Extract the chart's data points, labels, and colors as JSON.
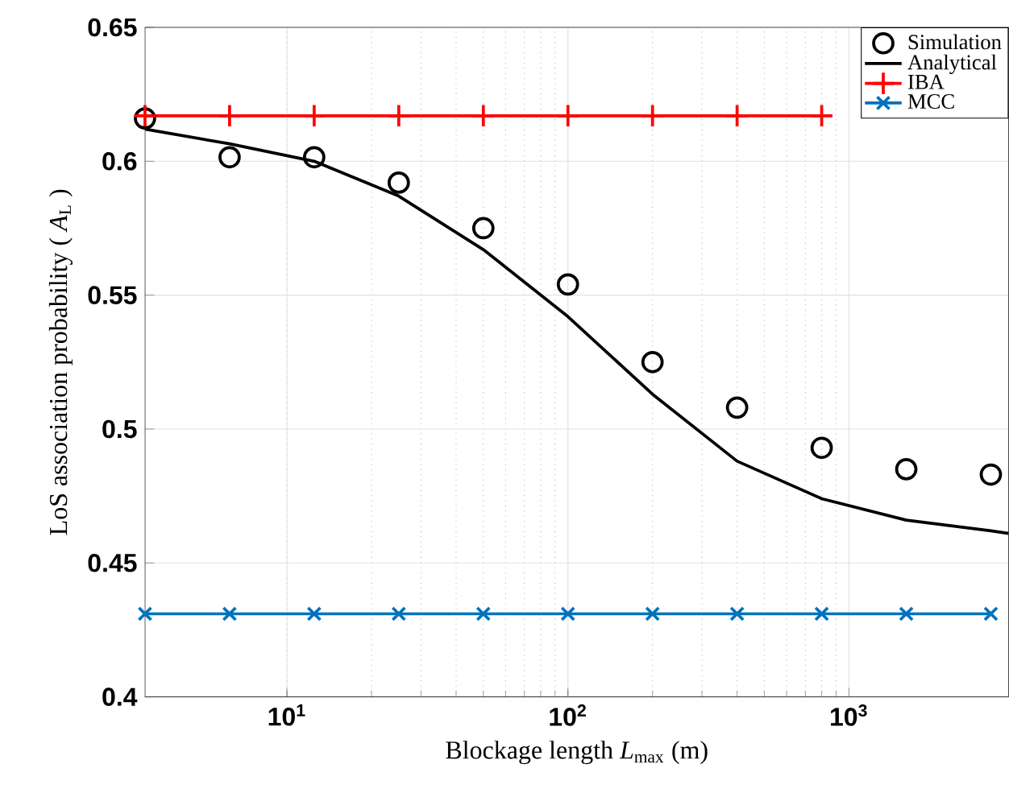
{
  "chart_data": {
    "type": "line",
    "xlabel": "Blockage length *L*$_{max}$ (m)",
    "ylabel": "LoS association probability ( *A*$_{L}$ )",
    "log": "x",
    "xlim": [
      3.125,
      3700
    ],
    "ylim": [
      0.4,
      0.65
    ],
    "xticks": [
      {
        "value": 10,
        "label": "10$^{1}$"
      },
      {
        "value": 100,
        "label": "10$^{2}$"
      },
      {
        "value": 1000,
        "label": "10$^{3}$"
      }
    ],
    "yticks": [
      0.4,
      0.45,
      0.5,
      0.55,
      0.6,
      0.65
    ],
    "grid": true,
    "legend": "top right",
    "line_style": "solid",
    "series": [
      {
        "name": "Simulation",
        "type": "scatter",
        "marker": "circle",
        "color": "#000000",
        "x": [
          3.125,
          6.25,
          12.5,
          25,
          50,
          100,
          200,
          400,
          800,
          1600,
          3200
        ],
        "values": [
          0.616,
          0.6015,
          0.6015,
          0.592,
          0.575,
          0.554,
          0.525,
          0.508,
          0.493,
          0.485,
          0.483
        ]
      },
      {
        "name": "Analytical",
        "marker": "none",
        "color": "#000000",
        "x": [
          3.125,
          6.25,
          12.5,
          25,
          50,
          100,
          200,
          400,
          800,
          1600,
          3200,
          3700
        ],
        "values": [
          0.612,
          0.6065,
          0.6,
          0.587,
          0.567,
          0.542,
          0.513,
          0.488,
          0.474,
          0.466,
          0.462,
          0.461
        ]
      },
      {
        "name": "IBA",
        "marker": "plus",
        "color": "#ff0000",
        "x": [
          3.125,
          6.25,
          12.5,
          25,
          50,
          100,
          200,
          400,
          800
        ],
        "values": [
          0.617,
          0.617,
          0.617,
          0.617,
          0.617,
          0.617,
          0.617,
          0.617,
          0.617
        ]
      },
      {
        "name": "MCC",
        "marker": "cross",
        "color": "#0072bd",
        "x": [
          3.125,
          6.25,
          12.5,
          25,
          50,
          100,
          200,
          400,
          800,
          1600,
          3200
        ],
        "values": [
          0.431,
          0.431,
          0.431,
          0.431,
          0.431,
          0.431,
          0.431,
          0.431,
          0.431,
          0.431,
          0.431
        ]
      }
    ]
  }
}
